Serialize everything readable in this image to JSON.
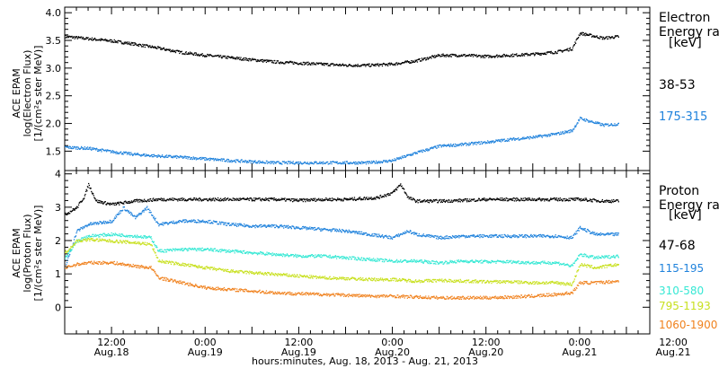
{
  "chart_data": [
    {
      "type": "scatter",
      "panel": "electron",
      "ylabel_lines": [
        "ACE EPAM",
        "log(Electron Flux)",
        "[1/(cm²s ster MeV)]"
      ],
      "yticks": [
        "1.5",
        "2.0",
        "2.5",
        "3.0",
        "3.5",
        "4.0"
      ],
      "ylim": [
        1.15,
        4.1
      ],
      "legend_title_lines": [
        "Electron",
        "Energy ran",
        "[keV]"
      ],
      "series": [
        {
          "name": "38-53",
          "color": "#000000",
          "points": [
            [
              0,
              3.58
            ],
            [
              6,
              3.54
            ],
            [
              12,
              3.5
            ],
            [
              18,
              3.44
            ],
            [
              24,
              3.37
            ],
            [
              30,
              3.29
            ],
            [
              36,
              3.24
            ],
            [
              42,
              3.2
            ],
            [
              48,
              3.16
            ],
            [
              54,
              3.12
            ],
            [
              60,
              3.1
            ],
            [
              66,
              3.08
            ],
            [
              72,
              3.06
            ],
            [
              78,
              3.06
            ],
            [
              84,
              3.08
            ],
            [
              90,
              3.14
            ],
            [
              96,
              3.24
            ],
            [
              102,
              3.24
            ],
            [
              108,
              3.22
            ],
            [
              114,
              3.24
            ],
            [
              120,
              3.26
            ],
            [
              126,
              3.3
            ],
            [
              130,
              3.36
            ],
            [
              132,
              3.64
            ],
            [
              136,
              3.58
            ],
            [
              138,
              3.55
            ],
            [
              142,
              3.58
            ]
          ]
        },
        {
          "name": "175-315",
          "color": "#1f82dc",
          "points": [
            [
              0,
              1.58
            ],
            [
              6,
              1.56
            ],
            [
              12,
              1.5
            ],
            [
              18,
              1.45
            ],
            [
              24,
              1.42
            ],
            [
              30,
              1.4
            ],
            [
              36,
              1.37
            ],
            [
              42,
              1.34
            ],
            [
              48,
              1.32
            ],
            [
              54,
              1.3
            ],
            [
              60,
              1.3
            ],
            [
              66,
              1.3
            ],
            [
              72,
              1.3
            ],
            [
              78,
              1.3
            ],
            [
              84,
              1.34
            ],
            [
              90,
              1.48
            ],
            [
              96,
              1.6
            ],
            [
              102,
              1.63
            ],
            [
              108,
              1.67
            ],
            [
              114,
              1.72
            ],
            [
              120,
              1.76
            ],
            [
              126,
              1.82
            ],
            [
              130,
              1.88
            ],
            [
              132,
              2.1
            ],
            [
              136,
              2.02
            ],
            [
              138,
              1.98
            ],
            [
              142,
              2.0
            ]
          ]
        }
      ]
    },
    {
      "type": "scatter",
      "panel": "proton",
      "ylabel_lines": [
        "ACE EPAM",
        "log(Proton Flux)",
        "[1/(cm²s ster MeV)]"
      ],
      "yticks": [
        "0",
        "1",
        "2",
        "3",
        "4"
      ],
      "ylim": [
        -0.8,
        4.1
      ],
      "legend_title_lines": [
        "Proton",
        "Energy ran",
        "[keV]"
      ],
      "series": [
        {
          "name": "47-68",
          "color": "#000000",
          "points": [
            [
              0,
              2.8
            ],
            [
              3,
              3.0
            ],
            [
              5,
              3.35
            ],
            [
              6,
              3.7
            ],
            [
              8,
              3.2
            ],
            [
              12,
              3.1
            ],
            [
              18,
              3.2
            ],
            [
              24,
              3.25
            ],
            [
              30,
              3.25
            ],
            [
              36,
              3.25
            ],
            [
              42,
              3.25
            ],
            [
              48,
              3.25
            ],
            [
              54,
              3.25
            ],
            [
              60,
              3.22
            ],
            [
              66,
              3.25
            ],
            [
              72,
              3.25
            ],
            [
              80,
              3.3
            ],
            [
              84,
              3.45
            ],
            [
              86,
              3.7
            ],
            [
              88,
              3.3
            ],
            [
              90,
              3.2
            ],
            [
              96,
              3.2
            ],
            [
              102,
              3.22
            ],
            [
              108,
              3.25
            ],
            [
              114,
              3.25
            ],
            [
              120,
              3.25
            ],
            [
              126,
              3.25
            ],
            [
              132,
              3.25
            ],
            [
              138,
              3.2
            ],
            [
              142,
              3.2
            ]
          ]
        },
        {
          "name": "115-195",
          "color": "#1f82dc",
          "points": [
            [
              0,
              1.2
            ],
            [
              3,
              2.3
            ],
            [
              6,
              2.5
            ],
            [
              12,
              2.6
            ],
            [
              15,
              3.0
            ],
            [
              18,
              2.7
            ],
            [
              21,
              3.0
            ],
            [
              24,
              2.5
            ],
            [
              30,
              2.6
            ],
            [
              36,
              2.6
            ],
            [
              42,
              2.5
            ],
            [
              48,
              2.45
            ],
            [
              54,
              2.45
            ],
            [
              60,
              2.4
            ],
            [
              66,
              2.35
            ],
            [
              72,
              2.3
            ],
            [
              78,
              2.2
            ],
            [
              84,
              2.1
            ],
            [
              88,
              2.3
            ],
            [
              90,
              2.2
            ],
            [
              96,
              2.1
            ],
            [
              102,
              2.15
            ],
            [
              108,
              2.15
            ],
            [
              114,
              2.15
            ],
            [
              120,
              2.15
            ],
            [
              126,
              2.15
            ],
            [
              130,
              2.1
            ],
            [
              132,
              2.4
            ],
            [
              136,
              2.2
            ],
            [
              142,
              2.2
            ]
          ]
        },
        {
          "name": "310-580",
          "color": "#36e8d4",
          "points": [
            [
              0,
              1.5
            ],
            [
              3,
              2.0
            ],
            [
              6,
              2.15
            ],
            [
              12,
              2.2
            ],
            [
              18,
              2.15
            ],
            [
              22,
              2.1
            ],
            [
              24,
              1.7
            ],
            [
              30,
              1.75
            ],
            [
              36,
              1.75
            ],
            [
              42,
              1.7
            ],
            [
              48,
              1.65
            ],
            [
              54,
              1.6
            ],
            [
              60,
              1.55
            ],
            [
              66,
              1.55
            ],
            [
              72,
              1.5
            ],
            [
              78,
              1.45
            ],
            [
              84,
              1.4
            ],
            [
              90,
              1.4
            ],
            [
              96,
              1.35
            ],
            [
              102,
              1.4
            ],
            [
              108,
              1.38
            ],
            [
              114,
              1.38
            ],
            [
              120,
              1.35
            ],
            [
              126,
              1.35
            ],
            [
              130,
              1.25
            ],
            [
              132,
              1.6
            ],
            [
              136,
              1.5
            ],
            [
              142,
              1.55
            ]
          ]
        },
        {
          "name": "795-1193",
          "color": "#c8e01e",
          "points": [
            [
              0,
              1.65
            ],
            [
              3,
              2.0
            ],
            [
              6,
              2.05
            ],
            [
              12,
              2.0
            ],
            [
              18,
              1.95
            ],
            [
              22,
              1.9
            ],
            [
              24,
              1.4
            ],
            [
              30,
              1.3
            ],
            [
              36,
              1.2
            ],
            [
              42,
              1.1
            ],
            [
              48,
              1.05
            ],
            [
              54,
              1.0
            ],
            [
              60,
              0.95
            ],
            [
              66,
              0.9
            ],
            [
              72,
              0.88
            ],
            [
              78,
              0.85
            ],
            [
              84,
              0.85
            ],
            [
              90,
              0.8
            ],
            [
              96,
              0.82
            ],
            [
              102,
              0.8
            ],
            [
              108,
              0.78
            ],
            [
              114,
              0.78
            ],
            [
              120,
              0.75
            ],
            [
              126,
              0.75
            ],
            [
              130,
              0.7
            ],
            [
              132,
              1.3
            ],
            [
              136,
              1.2
            ],
            [
              142,
              1.3
            ]
          ]
        },
        {
          "name": "1060-1900",
          "color": "#f0821e",
          "points": [
            [
              0,
              1.2
            ],
            [
              3,
              1.3
            ],
            [
              6,
              1.35
            ],
            [
              12,
              1.35
            ],
            [
              18,
              1.25
            ],
            [
              22,
              1.2
            ],
            [
              24,
              0.9
            ],
            [
              30,
              0.75
            ],
            [
              36,
              0.6
            ],
            [
              42,
              0.55
            ],
            [
              48,
              0.5
            ],
            [
              54,
              0.45
            ],
            [
              60,
              0.42
            ],
            [
              66,
              0.4
            ],
            [
              72,
              0.38
            ],
            [
              78,
              0.35
            ],
            [
              84,
              0.35
            ],
            [
              90,
              0.32
            ],
            [
              96,
              0.3
            ],
            [
              102,
              0.3
            ],
            [
              108,
              0.3
            ],
            [
              114,
              0.32
            ],
            [
              120,
              0.35
            ],
            [
              126,
              0.4
            ],
            [
              130,
              0.45
            ],
            [
              132,
              0.75
            ],
            [
              136,
              0.75
            ],
            [
              142,
              0.8
            ]
          ]
        }
      ]
    }
  ],
  "xaxis": {
    "xlim": [
      0,
      150
    ],
    "ticks": [
      {
        "x": 12,
        "time": "12:00",
        "date": "Aug.18"
      },
      {
        "x": 36,
        "time": "0:00",
        "date": "Aug.19"
      },
      {
        "x": 60,
        "time": "12:00",
        "date": "Aug.19"
      },
      {
        "x": 84,
        "time": "0:00",
        "date": "Aug.20"
      },
      {
        "x": 108,
        "time": "12:00",
        "date": "Aug.20"
      },
      {
        "x": 132,
        "time": "0:00",
        "date": "Aug.21"
      },
      {
        "x": 156,
        "time": "12:00",
        "date": "Aug.21"
      }
    ],
    "label": "hours:minutes, Aug. 18, 2013 - Aug. 21, 2013"
  }
}
